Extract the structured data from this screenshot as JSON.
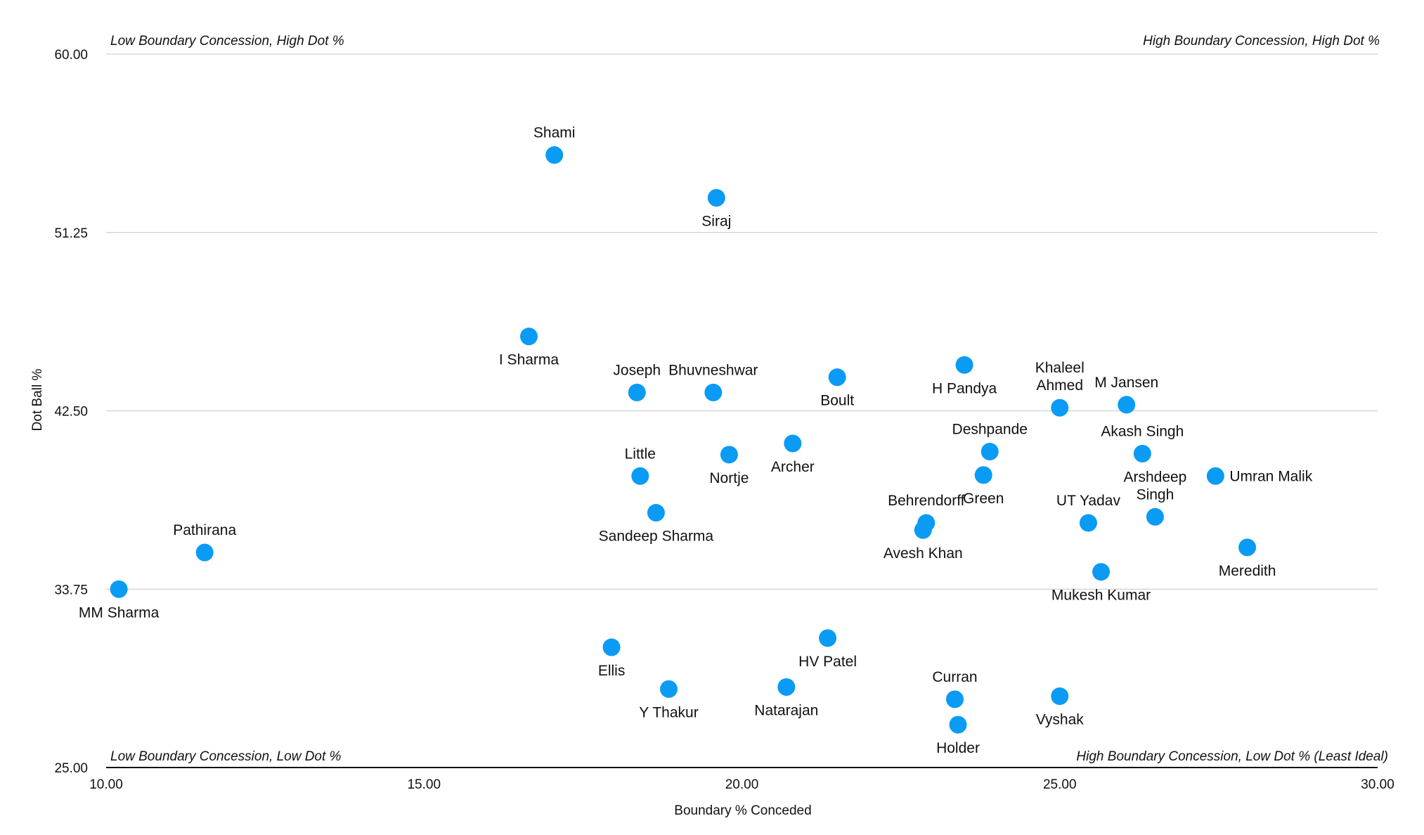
{
  "chart_data": {
    "type": "scatter",
    "title": "",
    "xlabel": "Boundary % Conceded",
    "ylabel": "Dot Ball %",
    "xlim": [
      10,
      30
    ],
    "ylim": [
      25,
      60
    ],
    "x_ticks": [
      "10.00",
      "15.00",
      "20.00",
      "25.00",
      "30.00"
    ],
    "y_ticks": [
      "25.00",
      "33.75",
      "42.50",
      "51.25",
      "60.00"
    ],
    "grid": "horizontal",
    "legend": "none",
    "marker_color": "#0A9BF5",
    "quadrant_labels": {
      "top_left": "Low Boundary Concession, High Dot %",
      "top_right": "High Boundary Concession, High Dot %",
      "bottom_left": "Low Boundary Concession, Low Dot %",
      "bottom_right": "High Boundary Concession, Low Dot % (Least Ideal)"
    },
    "points": [
      {
        "label": "Shami",
        "x": 17.05,
        "y": 55.05,
        "pos": "above"
      },
      {
        "label": "Siraj",
        "x": 19.6,
        "y": 52.95,
        "pos": "below"
      },
      {
        "label": "I Sharma",
        "x": 16.65,
        "y": 46.15,
        "pos": "below"
      },
      {
        "label": "Joseph",
        "x": 18.35,
        "y": 43.4,
        "pos": "above"
      },
      {
        "label": "Bhuvneshwar",
        "x": 19.55,
        "y": 43.4,
        "pos": "above"
      },
      {
        "label": "Boult",
        "x": 21.5,
        "y": 44.15,
        "pos": "below"
      },
      {
        "label": "H Pandya",
        "x": 23.5,
        "y": 44.75,
        "pos": "below"
      },
      {
        "label": "Khaleel\nAhmed",
        "x": 25.0,
        "y": 42.65,
        "pos": "above"
      },
      {
        "label": "M Jansen",
        "x": 26.05,
        "y": 42.8,
        "pos": "above"
      },
      {
        "label": "Archer",
        "x": 20.8,
        "y": 40.9,
        "pos": "below"
      },
      {
        "label": "Nortje",
        "x": 19.8,
        "y": 40.35,
        "pos": "below"
      },
      {
        "label": "Little",
        "x": 18.4,
        "y": 39.3,
        "pos": "above"
      },
      {
        "label": "Deshpande",
        "x": 23.9,
        "y": 40.5,
        "pos": "above"
      },
      {
        "label": "Green",
        "x": 23.8,
        "y": 39.35,
        "pos": "below"
      },
      {
        "label": "Akash Singh",
        "x": 26.3,
        "y": 40.4,
        "pos": "above"
      },
      {
        "label": "Umran Malik",
        "x": 27.45,
        "y": 39.3,
        "pos": "right"
      },
      {
        "label": "Sandeep Sharma",
        "x": 18.65,
        "y": 37.5,
        "pos": "below"
      },
      {
        "label": "Behrendorff",
        "x": 22.9,
        "y": 37.0,
        "pos": "above"
      },
      {
        "label": "Avesh Khan",
        "x": 22.85,
        "y": 36.65,
        "pos": "below"
      },
      {
        "label": "UT Yadav",
        "x": 25.45,
        "y": 37.0,
        "pos": "above"
      },
      {
        "label": "Arshdeep\nSingh",
        "x": 26.5,
        "y": 37.3,
        "pos": "above"
      },
      {
        "label": "Meredith",
        "x": 27.95,
        "y": 35.8,
        "pos": "below"
      },
      {
        "label": "Mukesh Kumar",
        "x": 25.65,
        "y": 34.6,
        "pos": "below"
      },
      {
        "label": "Pathirana",
        "x": 11.55,
        "y": 35.55,
        "pos": "above"
      },
      {
        "label": "MM Sharma",
        "x": 10.2,
        "y": 33.75,
        "pos": "below"
      },
      {
        "label": "Ellis",
        "x": 17.95,
        "y": 30.9,
        "pos": "below"
      },
      {
        "label": "HV Patel",
        "x": 21.35,
        "y": 31.35,
        "pos": "below"
      },
      {
        "label": "Y Thakur",
        "x": 18.85,
        "y": 28.85,
        "pos": "below"
      },
      {
        "label": "Natarajan",
        "x": 20.7,
        "y": 28.95,
        "pos": "below"
      },
      {
        "label": "Curran",
        "x": 23.35,
        "y": 28.35,
        "pos": "above"
      },
      {
        "label": "Holder",
        "x": 23.4,
        "y": 27.1,
        "pos": "below"
      },
      {
        "label": "Vyshak",
        "x": 25.0,
        "y": 28.5,
        "pos": "below"
      }
    ]
  }
}
